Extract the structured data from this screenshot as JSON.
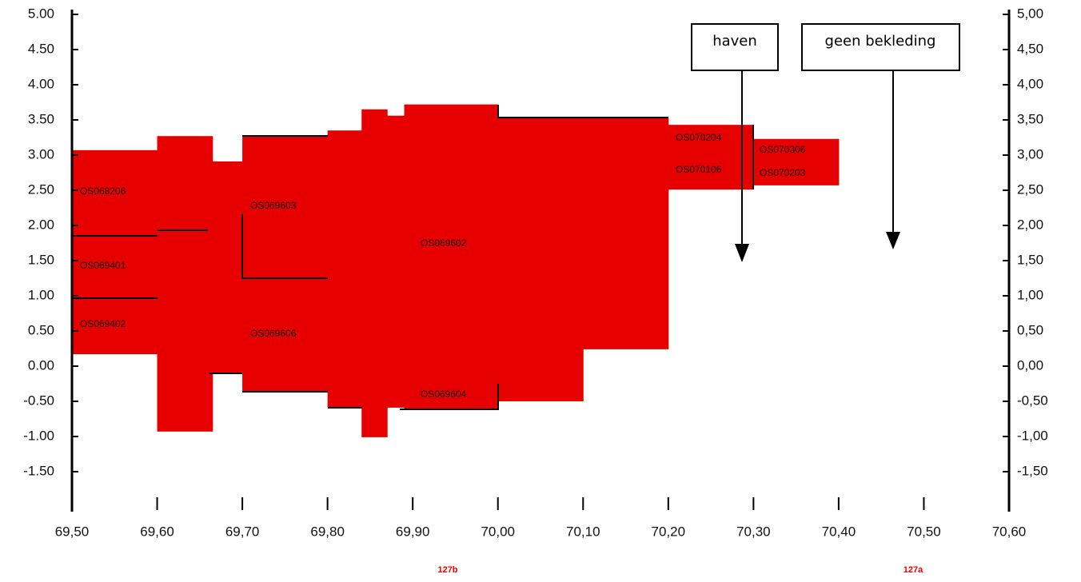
{
  "chart_data": {
    "type": "blocks",
    "color": "#e60000",
    "xlim": [
      69.5,
      70.6
    ],
    "ylim": [
      -2,
      5
    ],
    "xticks": [
      {
        "value": 69.5,
        "label": "69,50"
      },
      {
        "value": 69.6,
        "label": "69,60"
      },
      {
        "value": 69.7,
        "label": "69,70"
      },
      {
        "value": 69.8,
        "label": "69,80"
      },
      {
        "value": 69.9,
        "label": "69,90"
      },
      {
        "value": 70.0,
        "label": "70,00"
      },
      {
        "value": 70.1,
        "label": "70,10"
      },
      {
        "value": 70.2,
        "label": "70,20"
      },
      {
        "value": 70.3,
        "label": "70,30"
      },
      {
        "value": 70.4,
        "label": "70,40"
      },
      {
        "value": 70.5,
        "label": "70,50"
      },
      {
        "value": 70.6,
        "label": "70,60"
      }
    ],
    "yticks": [
      {
        "value": 5,
        "label": "5.00"
      },
      {
        "value": 4.5,
        "label": "4.50"
      },
      {
        "value": 4,
        "label": "4.00"
      },
      {
        "value": 3.5,
        "label": "3.50"
      },
      {
        "value": 3,
        "label": "3.00"
      },
      {
        "value": 2.5,
        "label": "2.50"
      },
      {
        "value": 2,
        "label": "2.00"
      },
      {
        "value": 1.5,
        "label": "1.50"
      },
      {
        "value": 1,
        "label": "1.00"
      },
      {
        "value": 0.5,
        "label": "0.50"
      },
      {
        "value": 0,
        "label": "0.00"
      },
      {
        "value": -0.5,
        "label": "-0.50"
      },
      {
        "value": -1,
        "label": "-1.00"
      },
      {
        "value": -1.5,
        "label": "-1.50"
      }
    ],
    "y2ticks": [
      {
        "value": 5,
        "label": "5,00"
      },
      {
        "value": 4.5,
        "label": "4,50"
      },
      {
        "value": 4,
        "label": "4,00"
      },
      {
        "value": 3.5,
        "label": "3,50"
      },
      {
        "value": 3,
        "label": "3,00"
      },
      {
        "value": 2.5,
        "label": "2,50"
      },
      {
        "value": 2,
        "label": "2,00"
      },
      {
        "value": 1.5,
        "label": "1,50"
      },
      {
        "value": 1,
        "label": "1,00"
      },
      {
        "value": 0.5,
        "label": "0,50"
      },
      {
        "value": 0,
        "label": "0,00"
      },
      {
        "value": -0.5,
        "label": "-0,50"
      },
      {
        "value": -1,
        "label": "-1,00"
      },
      {
        "value": -1.5,
        "label": "-1,50"
      }
    ],
    "blocks": {
      "x0": [
        69.5,
        69.6,
        69.665,
        69.7,
        69.8,
        69.84,
        69.87,
        69.89,
        70.0,
        70.1,
        70.2,
        70.3
      ],
      "x1": [
        69.6,
        69.665,
        69.7,
        69.8,
        69.84,
        69.87,
        69.89,
        70.0,
        70.1,
        70.2,
        70.3,
        70.4
      ],
      "bottom": [
        0.17,
        -0.93,
        -0.1,
        -0.36,
        -0.59,
        -1.01,
        -0.59,
        -0.61,
        -0.5,
        0.24,
        2.51,
        2.57
      ],
      "top": [
        3.07,
        3.27,
        2.91,
        3.27,
        3.35,
        3.65,
        3.56,
        3.72,
        3.53,
        3.53,
        3.43,
        3.23
      ]
    },
    "section_labels": [
      "OS068206",
      "OS069401",
      "OS069402",
      "OS069603",
      "OS069606",
      "OS069602",
      "OS069604",
      "OS070204",
      "OS070106",
      "OS070306",
      "OS070203"
    ],
    "annotations": [
      "haven",
      "geen bekleding"
    ],
    "markers": [
      "127b",
      "127a"
    ]
  }
}
